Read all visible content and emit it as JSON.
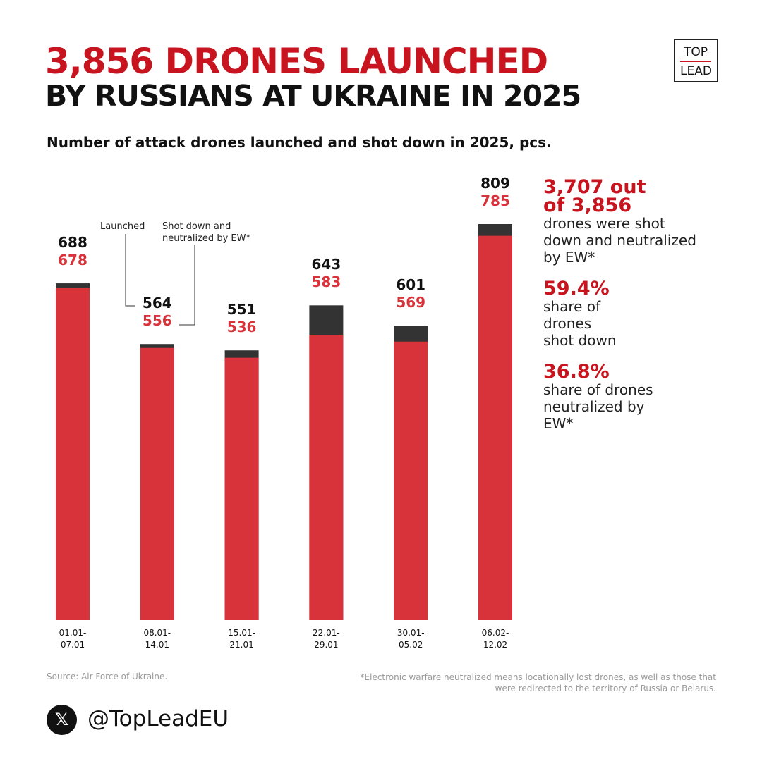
{
  "chart_data": {
    "type": "bar",
    "title": "3,856 DRONES LAUNCHED",
    "subtitle": "BY RUSSIANS AT UKRAINE IN 2025",
    "description": "Number of attack drones launched and shot down in 2025, pcs.",
    "categories": [
      "01.01-\n07.01",
      "08.01-\n14.01",
      "15.01-\n21.01",
      "22.01-\n29.01",
      "30.01-\n05.02",
      "06.02-\n12.02"
    ],
    "series": [
      {
        "name": "Launched",
        "color": "#333333",
        "values": [
          688,
          564,
          551,
          643,
          601,
          809
        ]
      },
      {
        "name": "Shot down and neutralized by EW*",
        "color": "#d8333a",
        "values": [
          678,
          556,
          536,
          583,
          569,
          785
        ]
      }
    ],
    "stats": [
      {
        "value": "3,707 out of 3,856",
        "text": "drones were shot down and neutralized by EW*"
      },
      {
        "value": "59.4%",
        "text": "share of drones shot down"
      },
      {
        "value": "36.8%",
        "text": "share of drones neutralized by EW*"
      }
    ],
    "source": "Source: Air Force of Ukraine.",
    "footnote": "*Electronic warfare neutralized means locationally lost drones, as well as those that were redirected to the territory of Russia or Belarus.",
    "handle": "@TopLeadEU",
    "logo": [
      "TOP",
      "LEAD"
    ]
  }
}
